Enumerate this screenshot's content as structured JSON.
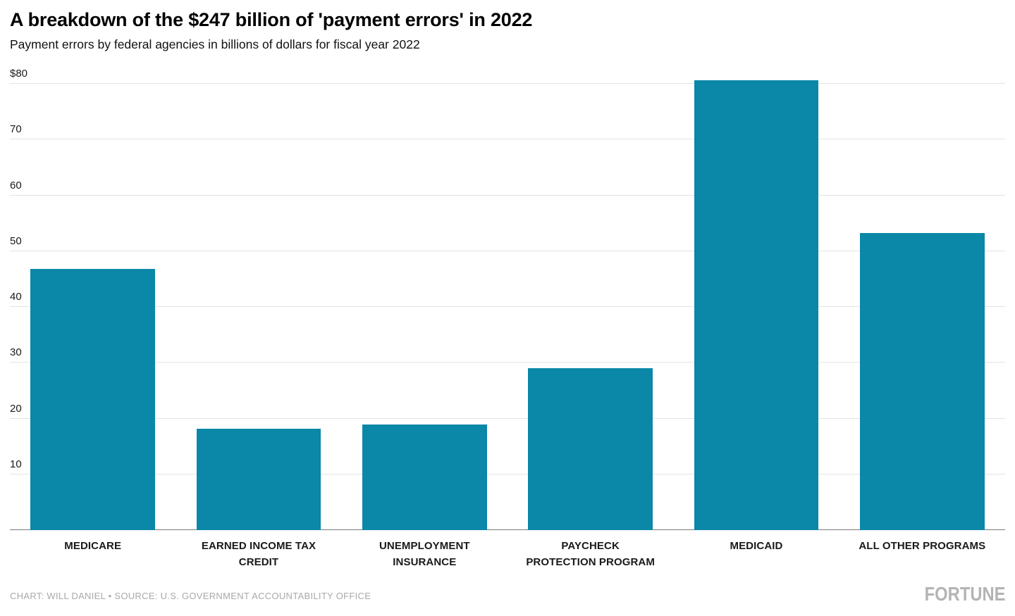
{
  "chart_data": {
    "type": "bar",
    "title": "A breakdown of the $247 billion of 'payment errors' in 2022",
    "subtitle": "Payment errors by federal agencies in billions of dollars for fiscal year 2022",
    "categories": [
      "MEDICARE",
      "EARNED INCOME TAX CREDIT",
      "UNEMPLOYMENT INSURANCE",
      "PAYCHECK PROTECTION PROGRAM",
      "MEDICAID",
      "ALL OTHER PROGRAMS"
    ],
    "values": [
      46.8,
      18.2,
      18.9,
      29.0,
      80.6,
      53.2
    ],
    "xlabel": "",
    "ylabel": "",
    "ylim": [
      0,
      80
    ],
    "yticks": [
      10,
      20,
      30,
      40,
      50,
      60,
      70,
      80
    ],
    "ytick_labels": [
      "10",
      "20",
      "30",
      "40",
      "50",
      "60",
      "70",
      "$80"
    ],
    "grid": true,
    "legend": "none",
    "bar_color": "#0b87a8",
    "grid_color": "#e3e3e3",
    "axis_color": "#7a7a7a"
  },
  "footer": {
    "credit": "CHART: WILL DANIEL • SOURCE: U.S. GOVERNMENT ACCOUNTABILITY OFFICE",
    "logo": "FORTUNE"
  }
}
